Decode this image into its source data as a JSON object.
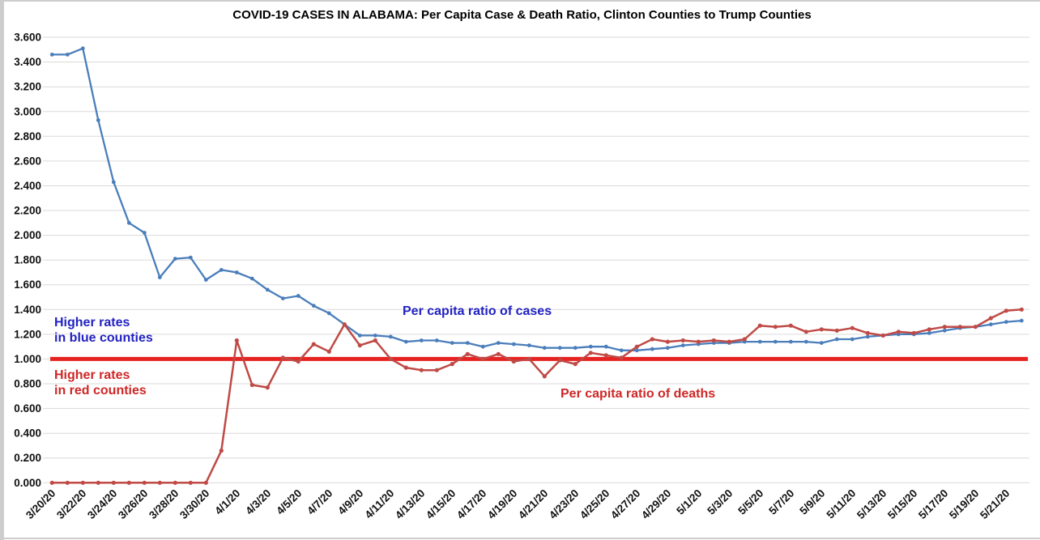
{
  "chart_data": {
    "type": "line",
    "title": "COVID-19 CASES IN ALABAMA: Per Capita Case & Death Ratio, Clinton Counties to Trump Counties",
    "ylim": [
      0,
      3.6
    ],
    "ytick_step": 0.2,
    "grid": "horizontal",
    "legend": "none (in-plot text annotations instead)",
    "n_points": 64,
    "y_tick_labels": [
      "0.000",
      "0.200",
      "0.400",
      "0.600",
      "0.800",
      "1.000",
      "1.200",
      "1.400",
      "1.600",
      "1.800",
      "2.000",
      "2.200",
      "2.400",
      "2.600",
      "2.800",
      "3.000",
      "3.200",
      "3.400",
      "3.600"
    ],
    "x_tick_labels": [
      "3/20/20",
      "3/22/20",
      "3/24/20",
      "3/26/20",
      "3/28/20",
      "3/30/20",
      "4/1/20",
      "4/3/20",
      "4/5/20",
      "4/7/20",
      "4/9/20",
      "4/11/20",
      "4/13/20",
      "4/15/20",
      "4/17/20",
      "4/19/20",
      "4/21/20",
      "4/23/20",
      "4/25/20",
      "4/27/20",
      "4/29/20",
      "5/1/20",
      "5/3/20",
      "5/5/20",
      "5/7/20",
      "5/9/20",
      "5/11/20",
      "5/13/20",
      "5/15/20",
      "5/17/20",
      "5/19/20",
      "5/21/20"
    ],
    "series": [
      {
        "name": "Per capita ratio of cases",
        "color": "#4a7ebb",
        "values": [
          3.46,
          3.46,
          3.51,
          2.93,
          2.43,
          2.1,
          2.02,
          1.66,
          1.81,
          1.82,
          1.64,
          1.72,
          1.7,
          1.65,
          1.56,
          1.49,
          1.51,
          1.43,
          1.37,
          1.28,
          1.19,
          1.19,
          1.18,
          1.14,
          1.15,
          1.15,
          1.13,
          1.13,
          1.1,
          1.13,
          1.12,
          1.11,
          1.09,
          1.09,
          1.09,
          1.1,
          1.1,
          1.07,
          1.07,
          1.08,
          1.09,
          1.11,
          1.12,
          1.13,
          1.13,
          1.14,
          1.14,
          1.14,
          1.14,
          1.14,
          1.13,
          1.16,
          1.16,
          1.18,
          1.19,
          1.2,
          1.2,
          1.21,
          1.23,
          1.25,
          1.26,
          1.28,
          1.3,
          1.31
        ]
      },
      {
        "name": "Per capita ratio of deaths",
        "color": "#bf4a46",
        "values": [
          0.0,
          0.0,
          0.0,
          0.0,
          0.0,
          0.0,
          0.0,
          0.0,
          0.0,
          0.0,
          0.0,
          0.26,
          1.15,
          0.79,
          0.77,
          1.01,
          0.98,
          1.12,
          1.06,
          1.28,
          1.11,
          1.15,
          1.0,
          0.93,
          0.91,
          0.91,
          0.96,
          1.04,
          1.0,
          1.04,
          0.98,
          1.0,
          0.86,
          0.99,
          0.96,
          1.05,
          1.03,
          1.01,
          1.1,
          1.16,
          1.14,
          1.15,
          1.14,
          1.15,
          1.14,
          1.16,
          1.27,
          1.26,
          1.27,
          1.22,
          1.24,
          1.23,
          1.25,
          1.21,
          1.19,
          1.22,
          1.21,
          1.24,
          1.26,
          1.26,
          1.26,
          1.33,
          1.39,
          1.4
        ]
      }
    ],
    "baseline": {
      "value": 1.0,
      "color": "#e62321"
    },
    "annotations": [
      {
        "id": "higher-blue",
        "lines": [
          "Higher rates",
          "in blue counties"
        ],
        "color": "#2222c2"
      },
      {
        "id": "higher-red",
        "lines": [
          "Higher rates",
          "in red counties"
        ],
        "color": "#ce2727"
      },
      {
        "id": "cases-label",
        "lines": [
          "Per capita ratio of cases"
        ],
        "color": "#2222c2"
      },
      {
        "id": "deaths-label",
        "lines": [
          "Per capita ratio of deaths"
        ],
        "color": "#ce2727"
      }
    ]
  }
}
